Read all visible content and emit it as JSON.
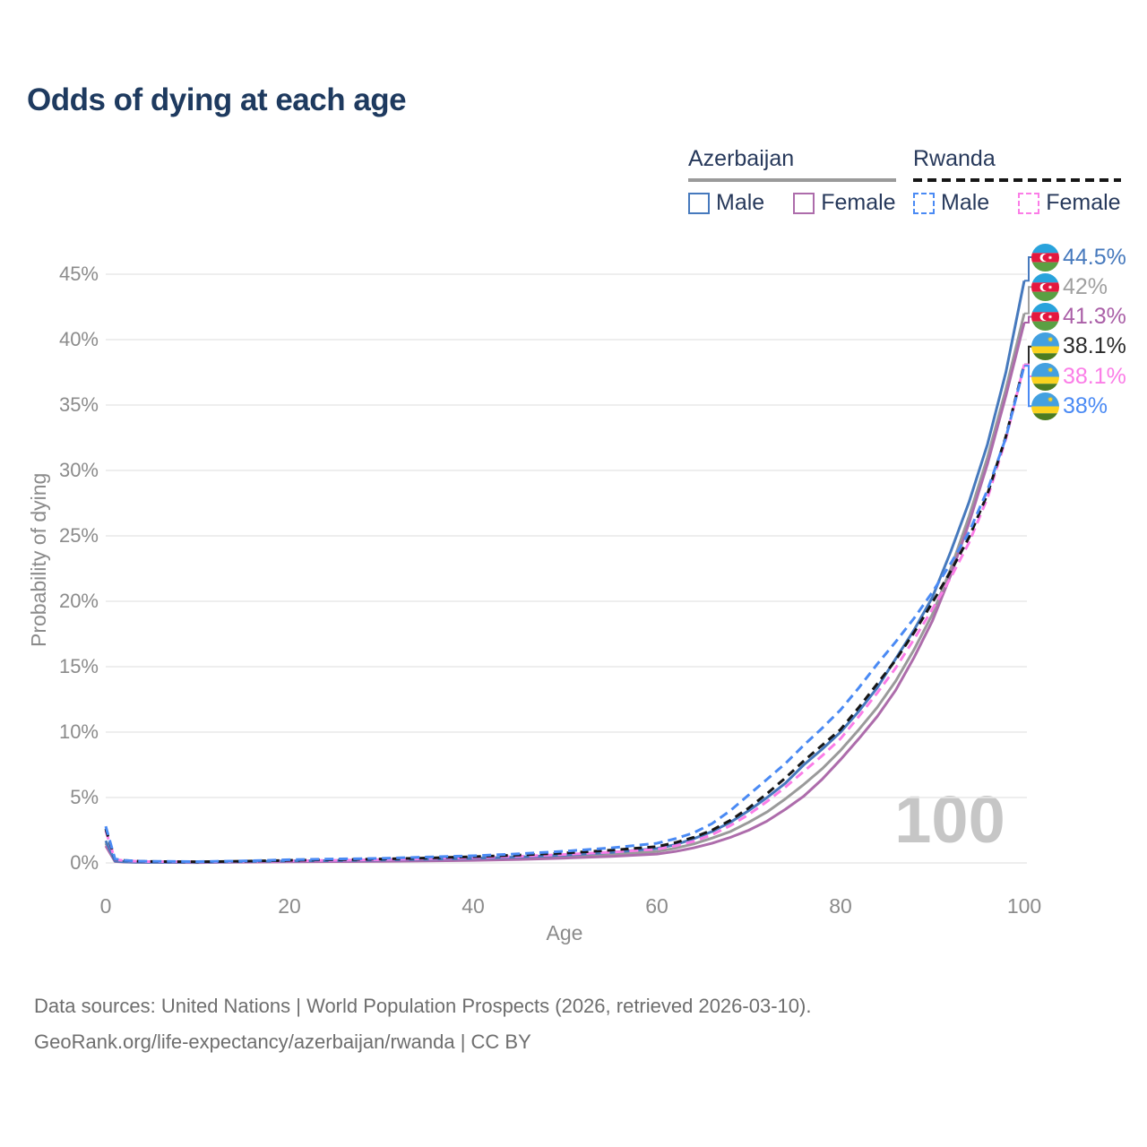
{
  "title": "Odds of dying at each age",
  "colors": {
    "title_text": "#1e3a5f",
    "legend_text": "#27395b",
    "axis_text": "#8b8b8b",
    "grid": "#e9e9e9",
    "watermark": "#c6c6c6",
    "az_male": "#4679bd",
    "az_female": "#ad6cab",
    "az_all": "#9a9a9a",
    "rw_male": "#4a8af4",
    "rw_female": "#fb7de7",
    "rw_all": "#161616"
  },
  "legend": {
    "azerbaijan": {
      "title": "Azerbaijan",
      "male": "Male",
      "female": "Female"
    },
    "rwanda": {
      "title": "Rwanda",
      "male": "Male",
      "female": "Female"
    }
  },
  "chart_data": {
    "type": "line",
    "title": "Odds of dying at each age",
    "xlabel": "Age",
    "ylabel": "Probability of dying",
    "xlim": [
      0,
      100
    ],
    "ylim_percent": [
      0,
      45
    ],
    "grid": "horizontal",
    "x_ticks": [
      0,
      20,
      40,
      60,
      80,
      100
    ],
    "y_ticks_percent": [
      0,
      5,
      10,
      15,
      20,
      25,
      30,
      35,
      40,
      45
    ],
    "age_indicator": "100",
    "ages": [
      0,
      1,
      2,
      3,
      4,
      5,
      10,
      15,
      20,
      25,
      30,
      35,
      40,
      45,
      50,
      55,
      60,
      62,
      64,
      66,
      68,
      70,
      72,
      74,
      76,
      78,
      80,
      82,
      84,
      86,
      88,
      90,
      92,
      94,
      96,
      98,
      100
    ],
    "series": [
      {
        "name": "Azerbaijan",
        "slug": "azerbaijan-all",
        "color": "#9a9a9a",
        "dash": null,
        "values": [
          1.5,
          0.13,
          0.08,
          0.06,
          0.05,
          0.05,
          0.04,
          0.08,
          0.11,
          0.14,
          0.17,
          0.22,
          0.28,
          0.37,
          0.49,
          0.65,
          0.88,
          1.12,
          1.45,
          1.9,
          2.4,
          3.1,
          3.9,
          4.9,
          6.0,
          7.2,
          8.6,
          10.2,
          11.9,
          13.9,
          16.3,
          19.0,
          22.5,
          26.5,
          31.0,
          36.2,
          42.0
        ]
      },
      {
        "name": "Azerbaijan Female",
        "slug": "azerbaijan-female",
        "color": "#ad6cab",
        "dash": null,
        "values": [
          1.3,
          0.11,
          0.07,
          0.05,
          0.04,
          0.04,
          0.03,
          0.06,
          0.08,
          0.1,
          0.12,
          0.16,
          0.2,
          0.27,
          0.37,
          0.5,
          0.68,
          0.88,
          1.15,
          1.5,
          1.95,
          2.5,
          3.2,
          4.1,
          5.1,
          6.4,
          7.9,
          9.5,
          11.2,
          13.2,
          15.7,
          18.5,
          22.0,
          26.0,
          30.5,
          35.7,
          41.3
        ]
      },
      {
        "name": "Azerbaijan Male",
        "slug": "azerbaijan-male",
        "color": "#4679bd",
        "dash": null,
        "values": [
          1.7,
          0.15,
          0.09,
          0.07,
          0.06,
          0.05,
          0.05,
          0.1,
          0.15,
          0.18,
          0.22,
          0.28,
          0.35,
          0.45,
          0.6,
          0.8,
          1.1,
          1.4,
          1.85,
          2.4,
          3.1,
          4.0,
          5.0,
          6.1,
          7.5,
          8.7,
          10.0,
          11.6,
          13.4,
          15.6,
          17.8,
          20.3,
          23.8,
          27.6,
          32.0,
          37.5,
          44.5
        ]
      },
      {
        "name": "Rwanda Female",
        "slug": "rwanda-female",
        "color": "#fb7de7",
        "dash": "10 6",
        "values": [
          2.45,
          0.26,
          0.18,
          0.14,
          0.11,
          0.1,
          0.08,
          0.11,
          0.16,
          0.2,
          0.25,
          0.32,
          0.4,
          0.51,
          0.65,
          0.82,
          1.05,
          1.3,
          1.65,
          2.15,
          2.85,
          3.7,
          4.7,
          5.8,
          7.0,
          8.2,
          9.5,
          11.2,
          13.0,
          14.9,
          17.1,
          19.4,
          21.8,
          24.5,
          27.9,
          32.4,
          38.1
        ]
      },
      {
        "name": "Rwanda",
        "slug": "rwanda-all",
        "color": "#161616",
        "dash": "9 6",
        "values": [
          2.6,
          0.28,
          0.19,
          0.15,
          0.12,
          0.11,
          0.09,
          0.13,
          0.2,
          0.25,
          0.3,
          0.38,
          0.47,
          0.6,
          0.76,
          0.97,
          1.25,
          1.55,
          1.95,
          2.5,
          3.25,
          4.2,
          5.3,
          6.5,
          7.8,
          9.0,
          10.2,
          11.9,
          13.7,
          15.5,
          17.6,
          19.9,
          22.3,
          24.9,
          28.2,
          32.6,
          38.1
        ]
      },
      {
        "name": "Rwanda Male",
        "slug": "rwanda-male",
        "color": "#4a8af4",
        "dash": "10 6",
        "values": [
          2.8,
          0.3,
          0.2,
          0.16,
          0.13,
          0.12,
          0.1,
          0.15,
          0.25,
          0.3,
          0.35,
          0.45,
          0.55,
          0.7,
          0.9,
          1.15,
          1.5,
          1.85,
          2.3,
          3.0,
          4.0,
          5.2,
          6.4,
          7.6,
          9.0,
          10.3,
          11.7,
          13.4,
          15.2,
          16.9,
          18.7,
          20.7,
          22.9,
          25.3,
          28.5,
          32.5,
          38.0
        ]
      }
    ],
    "legend_position": "top-right"
  },
  "end_labels": [
    {
      "series": "Azerbaijan Male",
      "value": "44.5%",
      "flag": "azerbaijan",
      "color": "#4679bd"
    },
    {
      "series": "Azerbaijan",
      "value": "42%",
      "flag": "azerbaijan",
      "color": "#a0a0a0"
    },
    {
      "series": "Azerbaijan Female",
      "value": "41.3%",
      "flag": "azerbaijan",
      "color": "#aa5fa7"
    },
    {
      "series": "Rwanda",
      "value": "38.1%",
      "flag": "rwanda",
      "color": "#2b2b2b"
    },
    {
      "series": "Rwanda Female",
      "value": "38.1%",
      "flag": "rwanda",
      "color": "#fb7de7"
    },
    {
      "series": "Rwanda Male",
      "value": "38%",
      "flag": "rwanda",
      "color": "#4a8af4"
    }
  ],
  "flags": {
    "azerbaijan": {
      "blue": "#29a3dc",
      "red": "#e4173e",
      "green": "#5aa043"
    },
    "rwanda": {
      "blue": "#43a0e0",
      "yellow": "#fbd31f",
      "green": "#4d7c21",
      "sun": "#efc51b"
    }
  },
  "footer": {
    "line1": "Data sources: United Nations | World Population Prospects (2026, retrieved 2026-03-10).",
    "line2": "GeoRank.org/life-expectancy/azerbaijan/rwanda | CC BY"
  }
}
